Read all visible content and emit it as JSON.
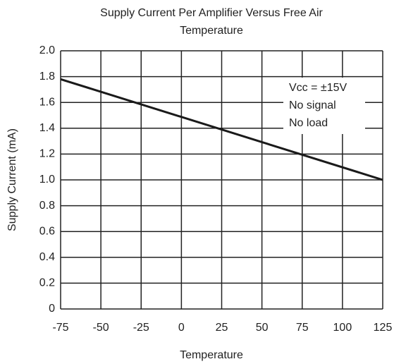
{
  "chart_data": {
    "type": "line",
    "title": [
      "Supply Current Per Amplifier Versus Free Air",
      "Temperature"
    ],
    "xlabel": "Temperature",
    "ylabel": "Supply Current  (mA)",
    "x": [
      -75,
      125
    ],
    "values": [
      1.78,
      1.0
    ],
    "color": "#1a1a1a",
    "xlim": [
      -75,
      125
    ],
    "xticks": [
      -75,
      -50,
      -25,
      0,
      25,
      50,
      75,
      100,
      125
    ],
    "ylim": [
      0,
      2
    ],
    "yticks": [
      {
        "value": 2,
        "label": "2.0"
      },
      1.8,
      1.6,
      1.4,
      1.2,
      {
        "value": 1,
        "label": "1.0"
      },
      0.8,
      0.6,
      0.4,
      0.2,
      0
    ],
    "grid": true,
    "annotation": [
      "Vcc = ±15V",
      "No signal",
      "No load"
    ]
  }
}
